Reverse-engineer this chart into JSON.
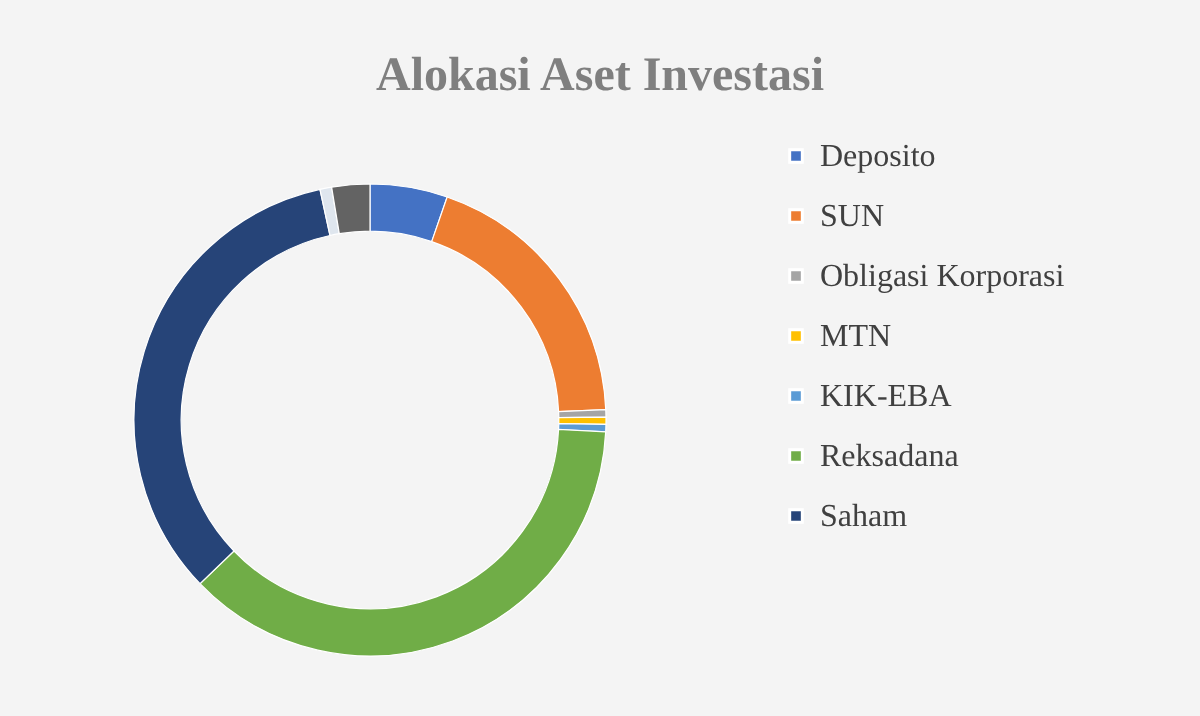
{
  "chart_data": {
    "type": "donut",
    "title": "Alokasi Aset Investasi",
    "categories": [
      "Deposito",
      "SUN",
      "Obligasi Korporasi",
      "MTN",
      "KIK-EBA",
      "Reksadana",
      "Saham",
      null,
      null
    ],
    "values": [
      5.3,
      19,
      0.5,
      0.5,
      0.5,
      37,
      33.8,
      0.8,
      2.6
    ],
    "colors": [
      "#4472c4",
      "#ed7d31",
      "#a5a5a5",
      "#ffc000",
      "#5b9bd5",
      "#70ad47",
      "#264478",
      "#dfe6ee",
      "#636363"
    ],
    "legend": "right"
  }
}
